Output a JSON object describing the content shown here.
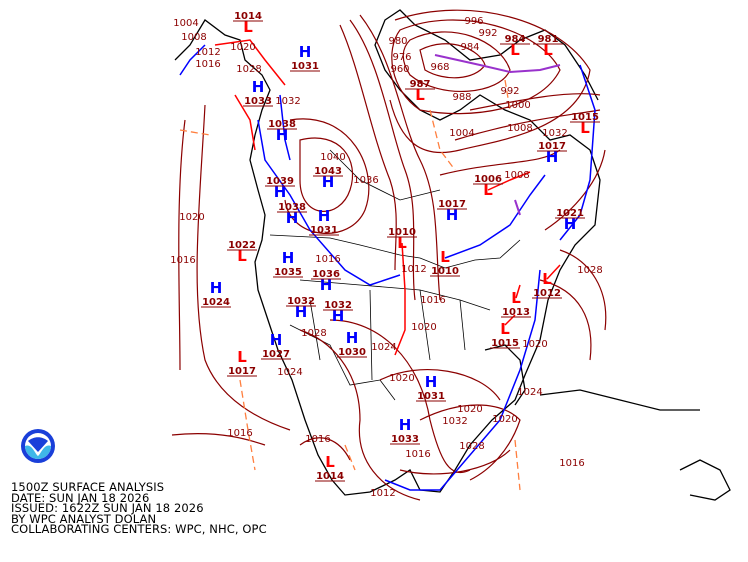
{
  "map": {
    "type": "surface-analysis",
    "colors": {
      "isobar": "#8b0000",
      "high": "#0000ff",
      "low": "#ff0000",
      "cold_front": "#0000ff",
      "warm_front": "#ff0000",
      "occluded_front": "#9932cc",
      "trough": "#ff7f3f"
    },
    "pressure_centers": [
      {
        "type": "L",
        "value": "1014"
      },
      {
        "type": "H",
        "value": "1031"
      },
      {
        "type": "L",
        "value": "987"
      },
      {
        "type": "L",
        "value": "984"
      },
      {
        "type": "L",
        "value": "981"
      },
      {
        "type": "H",
        "value": "1033"
      },
      {
        "type": "H",
        "value": "1038"
      },
      {
        "type": "H",
        "value": "1043"
      },
      {
        "type": "H",
        "value": "1039"
      },
      {
        "type": "H",
        "value": "1038"
      },
      {
        "type": "H",
        "value": "1031"
      },
      {
        "type": "L",
        "value": "1010"
      },
      {
        "type": "L",
        "value": "1010"
      },
      {
        "type": "H",
        "value": "1017"
      },
      {
        "type": "L",
        "value": "1006"
      },
      {
        "type": "H",
        "value": "1017"
      },
      {
        "type": "L",
        "value": "1015"
      },
      {
        "type": "H",
        "value": "1021"
      },
      {
        "type": "L",
        "value": "1022"
      },
      {
        "type": "H",
        "value": "1024"
      },
      {
        "type": "H",
        "value": "1035"
      },
      {
        "type": "H",
        "value": "1036"
      },
      {
        "type": "H",
        "value": "1032"
      },
      {
        "type": "H",
        "value": "1032"
      },
      {
        "type": "H",
        "value": "1030"
      },
      {
        "type": "H",
        "value": "1027"
      },
      {
        "type": "L",
        "value": "1017"
      },
      {
        "type": "H",
        "value": "1031"
      },
      {
        "type": "H",
        "value": "1033"
      },
      {
        "type": "L",
        "value": "1014"
      },
      {
        "type": "L",
        "value": "1012"
      },
      {
        "type": "L",
        "value": "1013"
      },
      {
        "type": "L",
        "value": "1015"
      }
    ],
    "isobar_labels": [
      "1004",
      "1008",
      "1012",
      "1016",
      "1020",
      "1028",
      "1032",
      "996",
      "992",
      "984",
      "980",
      "976",
      "968",
      "960",
      "988",
      "992",
      "1000",
      "1004",
      "1008",
      "1040",
      "1036",
      "1020",
      "1016",
      "1012",
      "1016",
      "1020",
      "1024",
      "1028",
      "1024",
      "1020",
      "1016",
      "1016",
      "1016",
      "1012",
      "1020",
      "1032",
      "1028",
      "1020",
      "1016",
      "1028",
      "1032",
      "1016",
      "1020",
      "1024",
      "1008"
    ]
  },
  "caption": {
    "line1": "1500Z SURFACE ANALYSIS",
    "line2": "DATE: SUN JAN 18 2026",
    "line3": "ISSUED: 1622Z SUN JAN 18 2026",
    "line4": "BY WPC ANALYST DOLAN",
    "line5": "COLLABORATING CENTERS: WPC, NHC, OPC"
  },
  "logo": {
    "text": "NOAA"
  }
}
